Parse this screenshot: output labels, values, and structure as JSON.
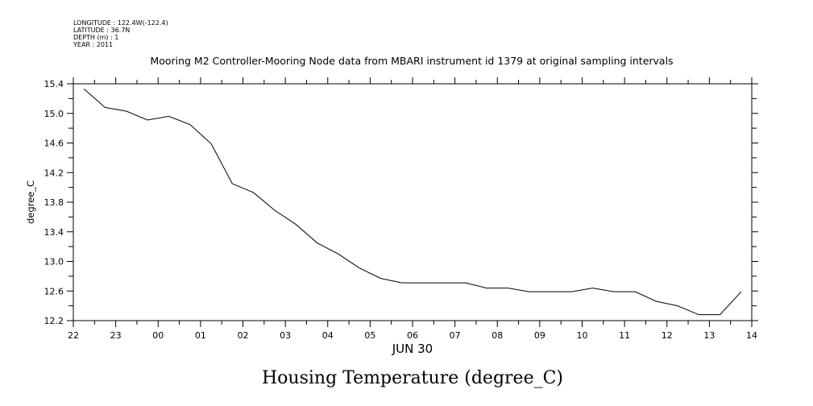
{
  "meta": {
    "longitude": "LONGITUDE : 122.4W(-122.4)",
    "latitude": "LATITUDE : 36.7N",
    "depth": "DEPTH (m) : 1",
    "year": "YEAR : 2011"
  },
  "chart_data": {
    "type": "line",
    "title": "Mooring M2 Controller-Mooring Node data from MBARI instrument id 1379 at original sampling intervals",
    "xlabel": "JUN 30",
    "ylabel": "degree_C",
    "bottom_title": "Housing Temperature (degree_C)",
    "x_unit": "hours since 22:00 Jun 29",
    "xlim": [
      0,
      16
    ],
    "ylim": [
      12.2,
      15.4
    ],
    "x_tick_labels": [
      "22",
      "23",
      "00",
      "01",
      "02",
      "03",
      "04",
      "05",
      "06",
      "07",
      "08",
      "09",
      "10",
      "11",
      "12",
      "13",
      "14"
    ],
    "y_ticks": [
      12.2,
      12.6,
      13.0,
      13.4,
      13.8,
      14.2,
      14.6,
      15.0,
      15.4
    ],
    "y_tick_labels": [
      "12.2",
      "12.6",
      "13.0",
      "13.4",
      "13.8",
      "14.2",
      "14.6",
      "15.0",
      "15.4"
    ],
    "grid": false,
    "series": [
      {
        "name": "Housing Temperature",
        "color": "#000000",
        "x": [
          0.25,
          0.75,
          1.25,
          1.75,
          2.25,
          2.75,
          3.25,
          3.75,
          4.25,
          4.75,
          5.25,
          5.75,
          6.25,
          6.75,
          7.25,
          7.75,
          8.25,
          8.75,
          9.25,
          9.75,
          10.25,
          10.75,
          11.25,
          11.75,
          12.25,
          12.75,
          13.25,
          13.75,
          14.25,
          14.75,
          15.25,
          15.75
        ],
        "values": [
          15.33,
          15.08,
          15.03,
          14.91,
          14.96,
          14.85,
          14.59,
          14.05,
          13.93,
          13.69,
          13.5,
          13.25,
          13.1,
          12.91,
          12.77,
          12.71,
          12.71,
          12.71,
          12.71,
          12.64,
          12.64,
          12.59,
          12.59,
          12.59,
          12.64,
          12.59,
          12.59,
          12.46,
          12.4,
          12.28,
          12.28,
          12.59
        ]
      }
    ]
  }
}
